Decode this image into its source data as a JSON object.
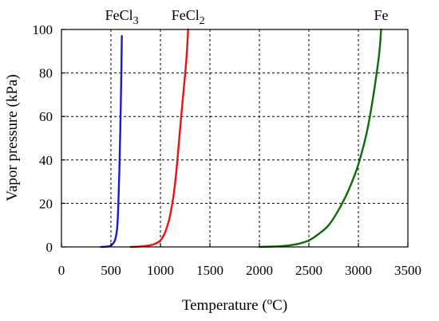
{
  "chart_data": {
    "type": "line",
    "xlabel": "Temperature (°C)",
    "xlabel_parts": {
      "before": "Temperature (",
      "sup": "o",
      "after": "C)"
    },
    "ylabel": "Vapor pressure (kPa)",
    "xlim": [
      0,
      3500
    ],
    "ylim": [
      0,
      100
    ],
    "xticks": [
      0,
      500,
      1000,
      1500,
      2000,
      2500,
      3000,
      3500
    ],
    "yticks": [
      0,
      20,
      40,
      60,
      80,
      100
    ],
    "grid": true,
    "series": [
      {
        "name": "FeCl3",
        "label_base": "FeCl",
        "label_sub": "3",
        "color": "#1a1acc",
        "x": [
          400,
          450,
          480,
          500,
          520,
          540,
          555,
          565,
          575,
          585,
          595,
          605,
          610
        ],
        "y": [
          0,
          0.1,
          0.3,
          0.6,
          1.5,
          3,
          6,
          10,
          20,
          35,
          55,
          80,
          97
        ]
      },
      {
        "name": "FeCl2",
        "label_base": "FeCl",
        "label_sub": "2",
        "color": "#ee1111",
        "x": [
          700,
          800,
          900,
          950,
          1000,
          1050,
          1100,
          1150,
          1200,
          1230,
          1260,
          1280
        ],
        "y": [
          0,
          0.2,
          0.8,
          1.5,
          3,
          7,
          15,
          30,
          55,
          70,
          85,
          100
        ]
      },
      {
        "name": "Fe",
        "label_base": "Fe",
        "label_sub": "",
        "color": "#0b6e0b",
        "x": [
          2000,
          2200,
          2300,
          2400,
          2500,
          2600,
          2700,
          2800,
          2900,
          3000,
          3100,
          3200,
          3230
        ],
        "y": [
          0,
          0.3,
          0.7,
          1.5,
          3,
          6,
          10,
          17,
          26,
          38,
          56,
          85,
          100
        ]
      }
    ]
  }
}
